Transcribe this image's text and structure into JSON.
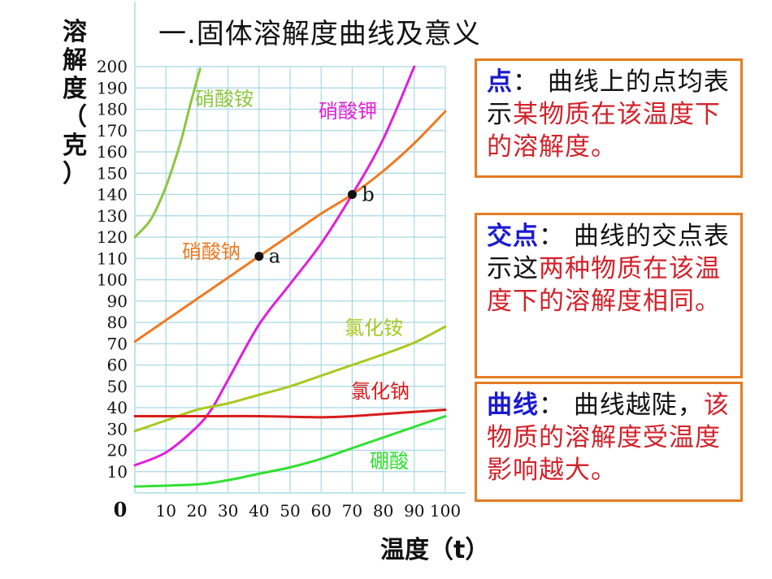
{
  "title": "一.固体溶解度曲线及意义",
  "notes": [
    {
      "segments": [
        {
          "text": "点",
          "color": "blue"
        },
        {
          "text": "：  曲线上的点均表示",
          "color": "black"
        },
        {
          "text": "某物质在该温度下的溶解度。",
          "color": "red"
        }
      ]
    },
    {
      "segments": [
        {
          "text": "交点",
          "color": "blue"
        },
        {
          "text": "：  曲线的交点表示这",
          "color": "black"
        },
        {
          "text": "两种物质在该温度下的溶解度相同。",
          "color": "red"
        }
      ]
    },
    {
      "segments": [
        {
          "text": "曲线",
          "color": "blue"
        },
        {
          "text": "：  曲线越陡，",
          "color": "black"
        },
        {
          "text": "该物质的溶解度受温度影响越大。",
          "color": "red"
        }
      ]
    }
  ],
  "chart_data": {
    "type": "line",
    "xlabel": "温度（t）",
    "ylabel": "溶解度（克）",
    "origin_label": "0",
    "xlim": [
      0,
      100
    ],
    "ylim": [
      0,
      200
    ],
    "grid": true,
    "grid_color": "#a8d8e8",
    "x_ticks": [
      10,
      20,
      30,
      40,
      50,
      60,
      70,
      80,
      90,
      100
    ],
    "y_ticks": [
      10,
      20,
      30,
      40,
      50,
      60,
      70,
      80,
      90,
      100,
      110,
      120,
      130,
      140,
      150,
      160,
      170,
      180,
      190,
      200
    ],
    "series": [
      {
        "name": "硝酸铵",
        "color": "#8cc63e",
        "x": [
          0,
          5,
          9,
          12,
          15,
          18,
          21
        ],
        "y": [
          120,
          128,
          140,
          152,
          166,
          183,
          199
        ]
      },
      {
        "name": "硝酸钾",
        "color": "#e020d8",
        "x": [
          0,
          10,
          20,
          25,
          30,
          40,
          50,
          60,
          70,
          80,
          90
        ],
        "y": [
          13,
          19,
          31,
          40,
          53,
          79,
          98,
          117,
          140,
          166,
          200
        ]
      },
      {
        "name": "硝酸钠",
        "color": "#ee7a22",
        "x": [
          0,
          10,
          20,
          30,
          40,
          50,
          60,
          70,
          80,
          90,
          100
        ],
        "y": [
          71,
          81,
          91,
          101,
          111,
          121,
          131,
          140,
          151,
          164,
          179
        ]
      },
      {
        "name": "氯化铵",
        "color": "#a8c820",
        "x": [
          0,
          10,
          20,
          30,
          40,
          50,
          60,
          70,
          80,
          90,
          100
        ],
        "y": [
          29,
          34,
          39,
          42,
          46,
          50,
          55,
          60,
          65,
          70.5,
          78
        ]
      },
      {
        "name": "氯化钠",
        "color": "#d81c1c",
        "x": [
          0,
          20,
          40,
          60,
          70,
          80,
          90,
          100
        ],
        "y": [
          36,
          36,
          36,
          35.5,
          36,
          37,
          38,
          39
        ]
      },
      {
        "name": "硼酸",
        "color": "#30e030",
        "x": [
          0,
          20,
          30,
          40,
          50,
          60,
          70,
          80,
          90,
          100
        ],
        "y": [
          3,
          4,
          6,
          9,
          12,
          16,
          21,
          26,
          31,
          36
        ]
      }
    ],
    "points": [
      {
        "label": "a",
        "x": 40,
        "y": 111
      },
      {
        "label": "b",
        "x": 70,
        "y": 140
      }
    ]
  }
}
